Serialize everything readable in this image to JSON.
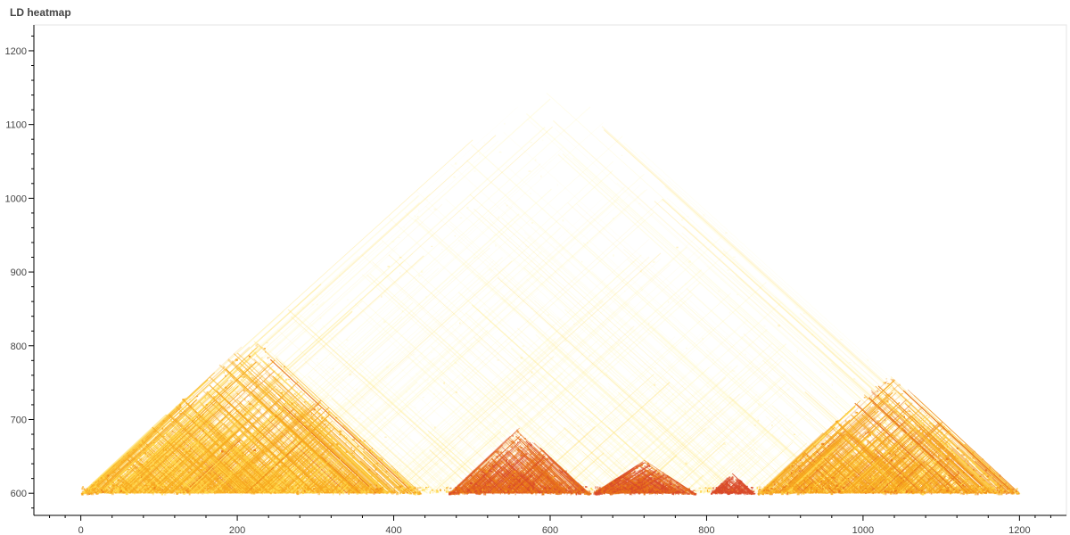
{
  "chart_data": {
    "type": "heatmap",
    "title": "LD heatmap",
    "xlabel": "",
    "ylabel": "",
    "xlim": [
      -60,
      1260
    ],
    "ylim": [
      570,
      1235
    ],
    "x_ticks": [
      0,
      200,
      400,
      600,
      800,
      1000,
      1200
    ],
    "y_ticks": [
      600,
      700,
      800,
      900,
      1000,
      1100,
      1200
    ],
    "grid": false,
    "legend": "none",
    "colormap": [
      "#fff6b0",
      "#ffd84a",
      "#f7a81e",
      "#e8731a",
      "#d94a2a"
    ],
    "blocks": [
      {
        "x_start": 0,
        "x_end": 435,
        "apex_y": 815,
        "intensity": 0.45
      },
      {
        "x_start": 470,
        "x_end": 650,
        "apex_y": 690,
        "intensity": 0.75
      },
      {
        "x_start": 655,
        "x_end": 785,
        "apex_y": 645,
        "intensity": 0.8
      },
      {
        "x_start": 805,
        "x_end": 860,
        "apex_y": 628,
        "intensity": 0.95
      },
      {
        "x_start": 865,
        "x_end": 1200,
        "apex_y": 765,
        "intensity": 0.5
      }
    ],
    "background_ld": {
      "x_start": 0,
      "x_end": 1200,
      "apex_y": 1175,
      "intensity": 0.1
    }
  }
}
